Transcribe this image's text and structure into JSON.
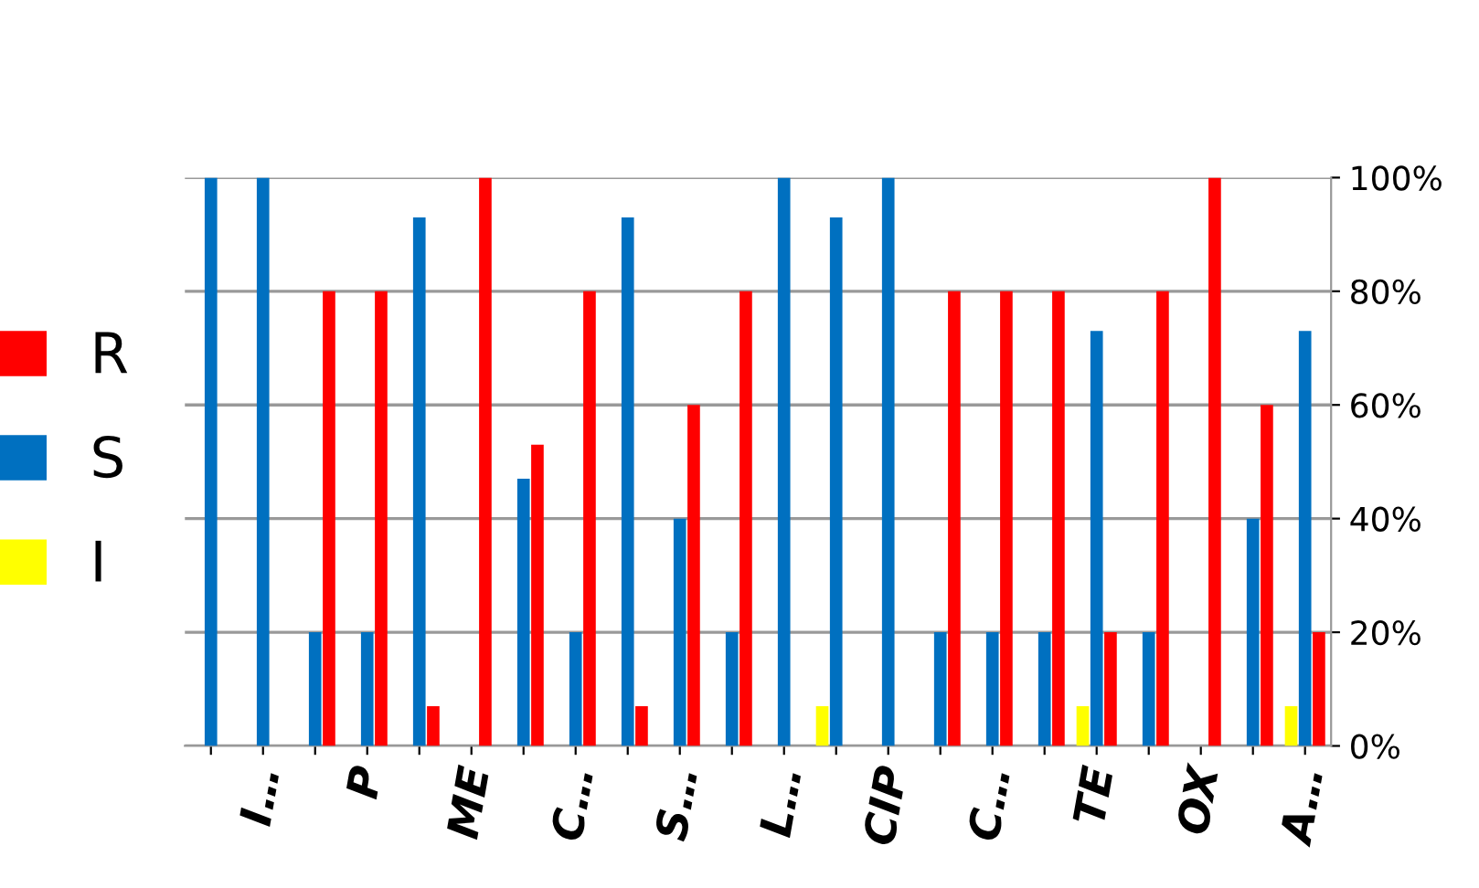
{
  "chart_data": {
    "type": "bar",
    "categories": [
      null,
      "I…",
      null,
      "P",
      null,
      "ME",
      null,
      "C…",
      null,
      "S…",
      null,
      "L…",
      null,
      "CIP",
      null,
      "C…",
      null,
      "TE",
      null,
      "OX",
      null,
      "A…"
    ],
    "series": [
      {
        "name": "I",
        "color": "#ffff00",
        "values": [
          0,
          0,
          0,
          0,
          0,
          0,
          0,
          0,
          0,
          0,
          0,
          0,
          7,
          0,
          0,
          0,
          0,
          7,
          0,
          0,
          0,
          7
        ]
      },
      {
        "name": "S",
        "color": "#0070c0",
        "values": [
          100,
          100,
          20,
          20,
          93,
          0,
          47,
          20,
          93,
          40,
          20,
          100,
          93,
          100,
          20,
          20,
          20,
          73,
          20,
          0,
          40,
          73
        ]
      },
      {
        "name": "R",
        "color": "#ff0000",
        "values": [
          0,
          0,
          80,
          80,
          7,
          100,
          53,
          80,
          7,
          60,
          80,
          0,
          0,
          0,
          80,
          80,
          80,
          20,
          80,
          100,
          60,
          20
        ]
      }
    ],
    "ylim": [
      0,
      100
    ],
    "yticks": [
      {
        "value": 0,
        "label": "0%"
      },
      {
        "value": 20,
        "label": "20%"
      },
      {
        "value": 40,
        "label": "40%"
      },
      {
        "value": 60,
        "label": "60%"
      },
      {
        "value": 80,
        "label": "80%"
      },
      {
        "value": 100,
        "label": "100%"
      }
    ],
    "grid": "y",
    "legend": "left"
  }
}
